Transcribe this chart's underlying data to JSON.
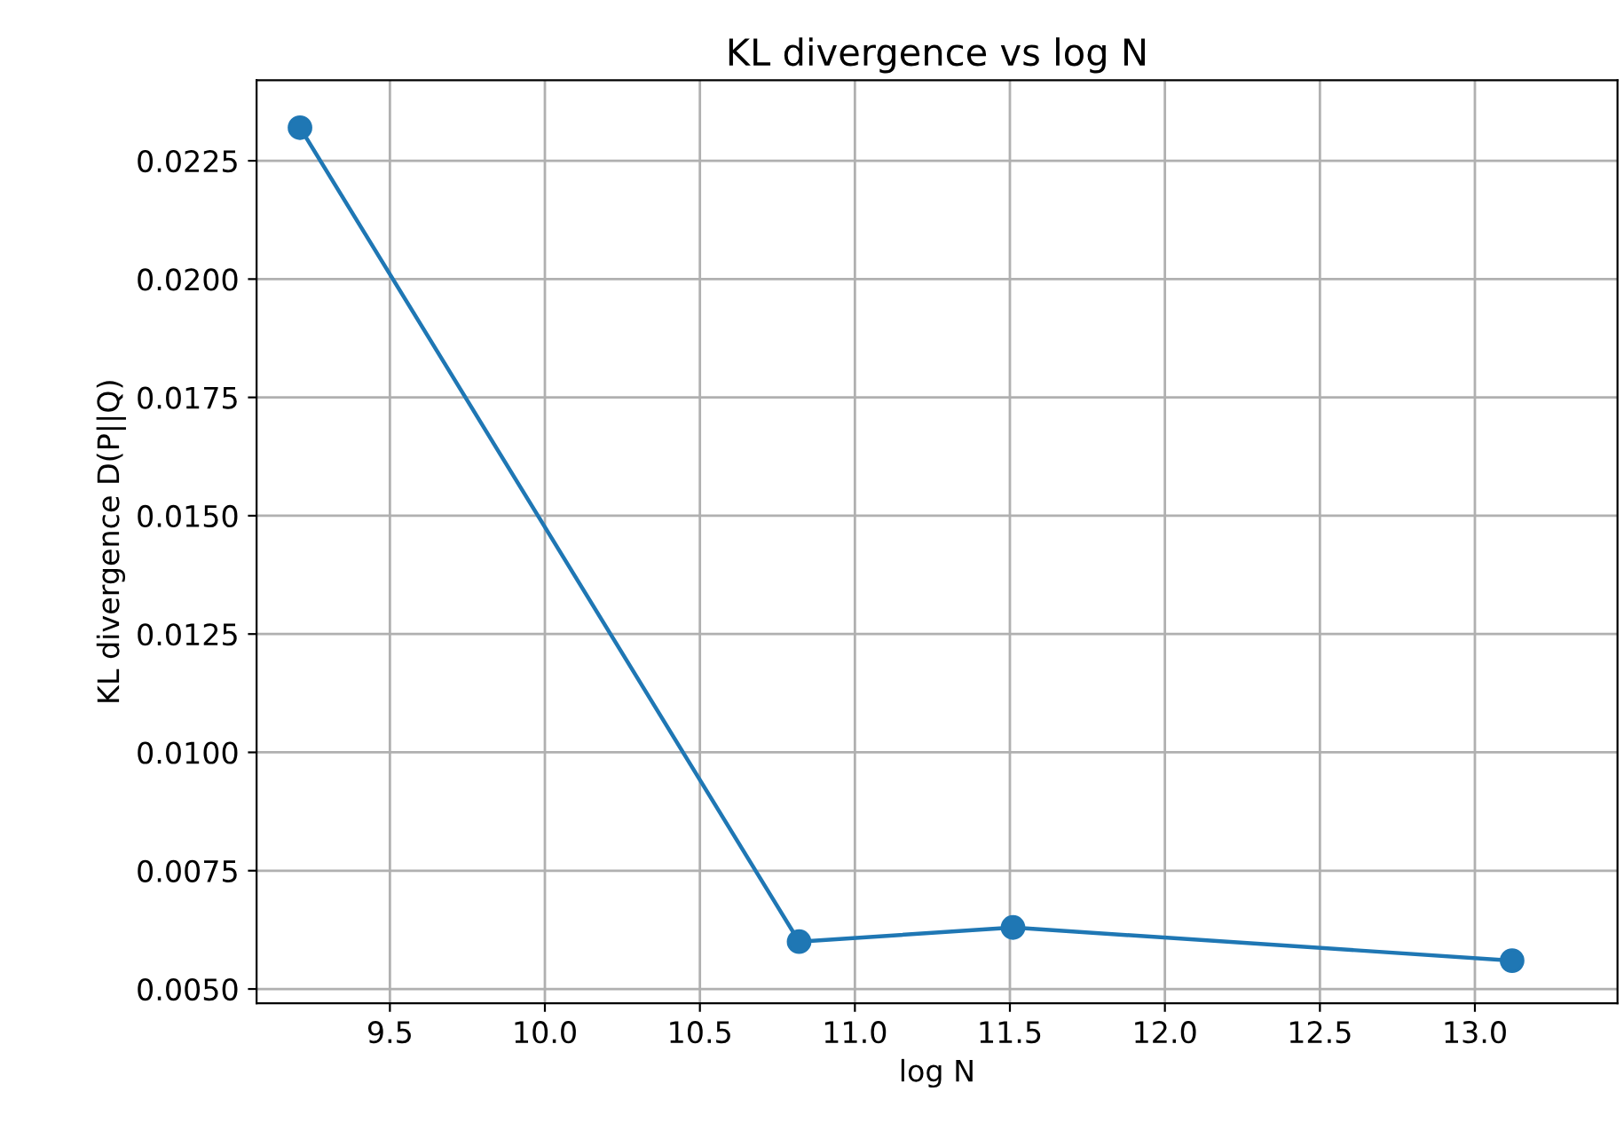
{
  "chart_data": {
    "type": "line",
    "title": "KL divergence vs log N",
    "xlabel": "log N",
    "ylabel": "KL divergence D(P||Q)",
    "x": [
      9.21,
      10.82,
      11.51,
      13.12
    ],
    "series": [
      {
        "color": "#1f77b4",
        "values": [
          0.0232,
          0.006,
          0.0063,
          0.0056
        ]
      }
    ],
    "xlim": [
      9.07,
      13.46
    ],
    "ylim": [
      0.0047,
      0.0242
    ],
    "xticks": [
      {
        "value": 9.5,
        "label": "9.5"
      },
      {
        "value": 10.0,
        "label": "10.0"
      },
      {
        "value": 10.5,
        "label": "10.5"
      },
      {
        "value": 11.0,
        "label": "11.0"
      },
      {
        "value": 11.5,
        "label": "11.5"
      },
      {
        "value": 12.0,
        "label": "12.0"
      },
      {
        "value": 12.5,
        "label": "12.5"
      },
      {
        "value": 13.0,
        "label": "13.0"
      }
    ],
    "yticks": [
      {
        "value": 0.005,
        "label": "0.0050"
      },
      {
        "value": 0.0075,
        "label": "0.0075"
      },
      {
        "value": 0.01,
        "label": "0.0100"
      },
      {
        "value": 0.0125,
        "label": "0.0125"
      },
      {
        "value": 0.015,
        "label": "0.0150"
      },
      {
        "value": 0.0175,
        "label": "0.0175"
      },
      {
        "value": 0.02,
        "label": "0.0200"
      },
      {
        "value": 0.0225,
        "label": "0.0225"
      }
    ],
    "grid": true,
    "marker": "circle",
    "line_style": "solid"
  }
}
